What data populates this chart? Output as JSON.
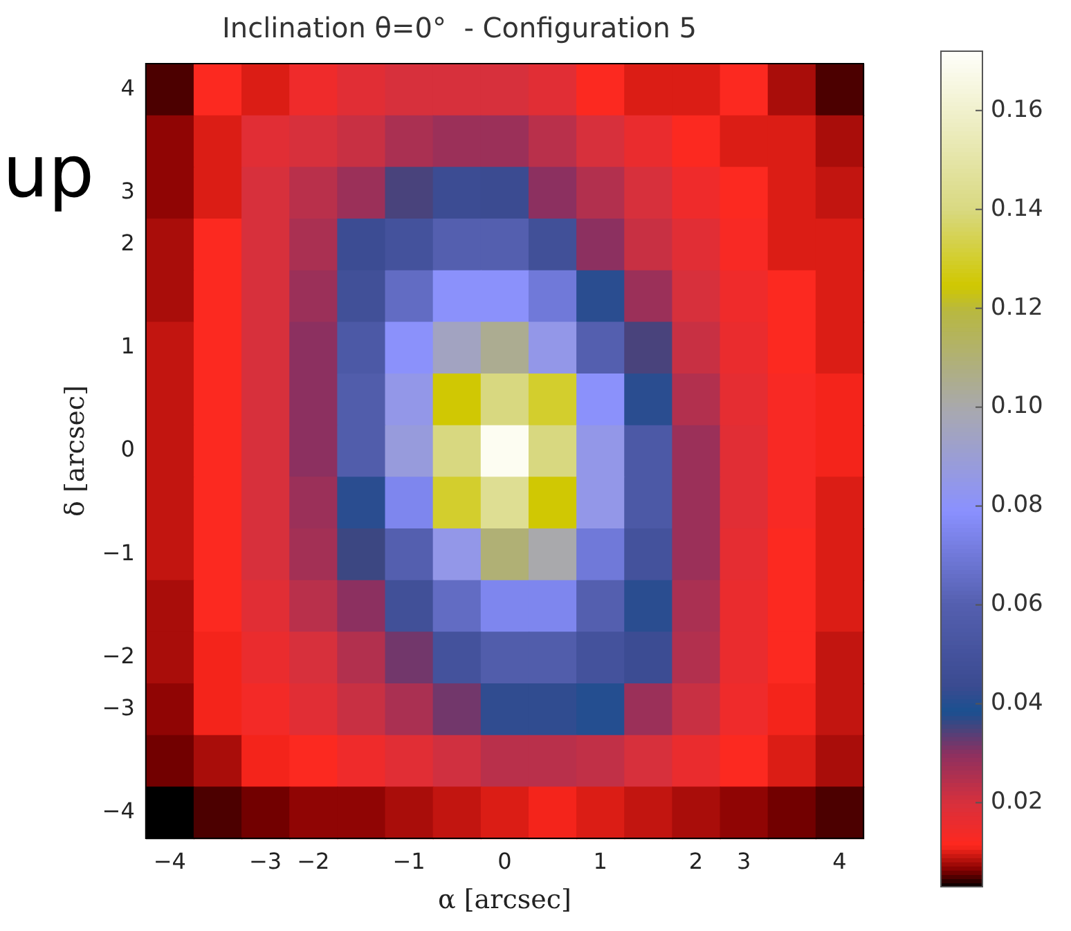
{
  "chart_data": {
    "type": "heatmap",
    "title": "Inclination θ=0°  - Configuration 5",
    "xlabel": "α [arcsec]",
    "ylabel": "δ [arcsec]",
    "annotations": [
      "up"
    ],
    "categories": [
      "−4",
      null,
      "−3",
      "−2",
      null,
      "−1",
      null,
      "0",
      null,
      "1",
      null,
      "2",
      "3",
      null,
      "4"
    ],
    "y_categories": [
      "4",
      null,
      "3",
      "2",
      null,
      "1",
      null,
      "0",
      null,
      "−1",
      null,
      "−2",
      "−3",
      null,
      "−4"
    ],
    "clim": [
      0.003,
      0.172
    ],
    "cticks": [
      {
        "value": 0.02,
        "label": "0.02"
      },
      {
        "value": 0.04,
        "label": "0.04"
      },
      {
        "value": 0.06,
        "label": "0.06"
      },
      {
        "value": 0.08,
        "label": "0.08"
      },
      {
        "value": 0.1,
        "label": "0.10"
      },
      {
        "value": 0.12,
        "label": "0.12"
      },
      {
        "value": 0.14,
        "label": "0.14"
      },
      {
        "value": 0.16,
        "label": "0.16"
      }
    ],
    "cells": [
      [
        0.005,
        0.012,
        0.01,
        0.015,
        0.018,
        0.02,
        0.02,
        0.02,
        0.018,
        0.012,
        0.01,
        0.01,
        0.012,
        0.008,
        0.005
      ],
      [
        0.007,
        0.01,
        0.018,
        0.02,
        0.022,
        0.026,
        0.028,
        0.028,
        0.024,
        0.02,
        0.016,
        0.012,
        0.01,
        0.01,
        0.008
      ],
      [
        0.007,
        0.01,
        0.02,
        0.024,
        0.028,
        0.035,
        0.045,
        0.044,
        0.03,
        0.025,
        0.02,
        0.015,
        0.012,
        0.01,
        0.009
      ],
      [
        0.008,
        0.012,
        0.02,
        0.026,
        0.045,
        0.05,
        0.06,
        0.06,
        0.048,
        0.03,
        0.022,
        0.018,
        0.013,
        0.01,
        0.01
      ],
      [
        0.008,
        0.012,
        0.02,
        0.028,
        0.048,
        0.065,
        0.08,
        0.08,
        0.07,
        0.041,
        0.028,
        0.02,
        0.015,
        0.012,
        0.01
      ],
      [
        0.009,
        0.012,
        0.02,
        0.03,
        0.055,
        0.08,
        0.095,
        0.105,
        0.085,
        0.06,
        0.035,
        0.022,
        0.016,
        0.012,
        0.01
      ],
      [
        0.009,
        0.012,
        0.02,
        0.03,
        0.058,
        0.085,
        0.125,
        0.14,
        0.13,
        0.08,
        0.041,
        0.025,
        0.017,
        0.013,
        0.011
      ],
      [
        0.009,
        0.012,
        0.02,
        0.03,
        0.058,
        0.088,
        0.14,
        0.17,
        0.14,
        0.085,
        0.055,
        0.028,
        0.018,
        0.013,
        0.011
      ],
      [
        0.009,
        0.012,
        0.02,
        0.028,
        0.041,
        0.075,
        0.13,
        0.145,
        0.125,
        0.085,
        0.055,
        0.028,
        0.018,
        0.013,
        0.01
      ],
      [
        0.009,
        0.012,
        0.02,
        0.027,
        0.036,
        0.06,
        0.085,
        0.11,
        0.1,
        0.07,
        0.05,
        0.028,
        0.017,
        0.012,
        0.01
      ],
      [
        0.008,
        0.012,
        0.018,
        0.024,
        0.03,
        0.048,
        0.065,
        0.075,
        0.075,
        0.06,
        0.041,
        0.026,
        0.016,
        0.012,
        0.01
      ],
      [
        0.008,
        0.011,
        0.016,
        0.02,
        0.025,
        0.032,
        0.05,
        0.058,
        0.058,
        0.05,
        0.045,
        0.025,
        0.016,
        0.012,
        0.009
      ],
      [
        0.007,
        0.011,
        0.014,
        0.018,
        0.022,
        0.026,
        0.032,
        0.042,
        0.042,
        0.04,
        0.028,
        0.022,
        0.015,
        0.011,
        0.009
      ],
      [
        0.006,
        0.008,
        0.011,
        0.012,
        0.015,
        0.018,
        0.021,
        0.024,
        0.024,
        0.023,
        0.02,
        0.016,
        0.012,
        0.01,
        0.008
      ],
      [
        0.003,
        0.005,
        0.006,
        0.007,
        0.007,
        0.008,
        0.009,
        0.01,
        0.011,
        0.01,
        0.009,
        0.008,
        0.007,
        0.006,
        0.005
      ]
    ]
  }
}
